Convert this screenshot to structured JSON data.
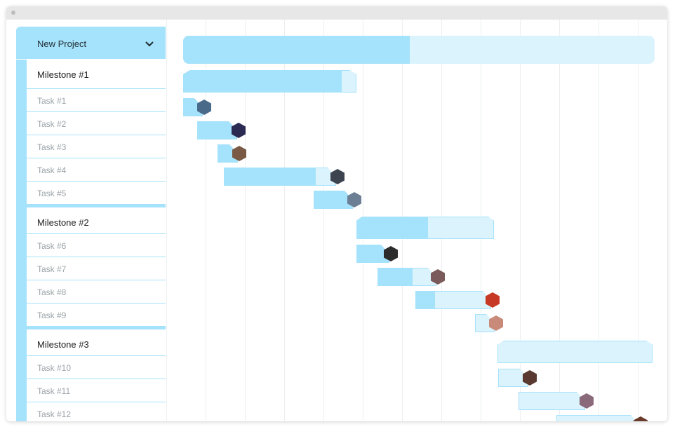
{
  "project": {
    "title": "New Project",
    "chevron_icon": "chevron-down-icon"
  },
  "milestones": [
    {
      "label": "Milestone #1",
      "tasks": [
        "Task #1",
        "Task #2",
        "Task #3",
        "Task #4",
        "Task #5"
      ]
    },
    {
      "label": "Milestone #2",
      "tasks": [
        "Task #6",
        "Task #7",
        "Task #8",
        "Task #9"
      ]
    },
    {
      "label": "Milestone #3",
      "tasks": [
        "Task #10",
        "Task #11",
        "Task #12"
      ]
    }
  ],
  "colors": {
    "accent": "#a5e2fb",
    "accent_light": "#dbf3fd",
    "gridline": "#eceff0",
    "label_muted": "#9aa3a8",
    "avatars": [
      "#4a6a8a",
      "#2b2a52",
      "#7a5a44",
      "#3d4450",
      "#6d7f95",
      "#2c2c2c",
      "#7a5a5a",
      "#c63a25",
      "#c98a7a",
      "#5a3a30",
      "#8a6a7a",
      "#6a3a2a"
    ]
  },
  "progress": {
    "project": 0.48,
    "milestones": [
      0.92,
      0.52,
      0
    ],
    "tasks": [
      1,
      1,
      1,
      0.82,
      1,
      1,
      0.6,
      0.25,
      0,
      0,
      0,
      0
    ]
  }
}
